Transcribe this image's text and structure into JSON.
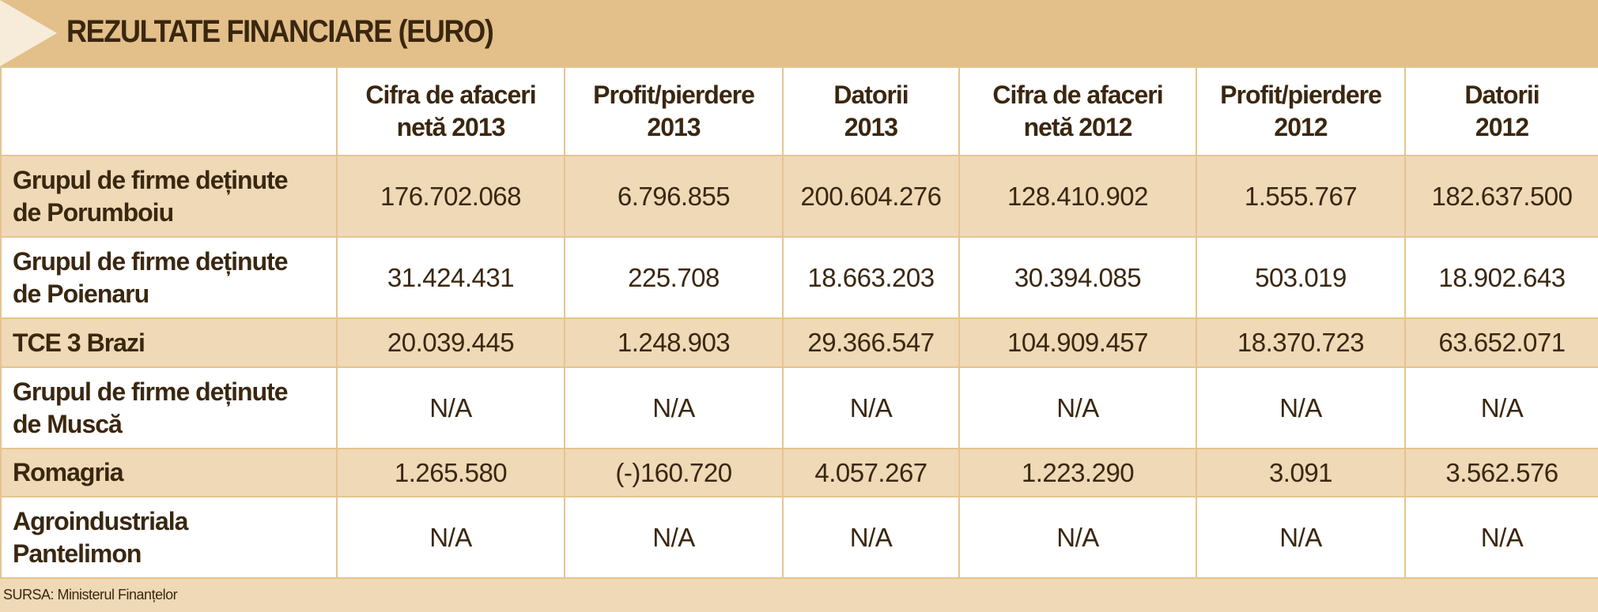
{
  "title": "REZULTATE FINANCIARE (EURO)",
  "table": {
    "header": [
      [
        "Cifra de afaceri",
        "netă 2013"
      ],
      [
        "Profit/pierdere",
        "2013"
      ],
      [
        "Datorii",
        "2013"
      ],
      [
        "Cifra de afaceri",
        "netă 2012"
      ],
      [
        "Profit/pierdere",
        "2012"
      ],
      [
        "Datorii",
        "2012"
      ]
    ],
    "rows": [
      {
        "label": [
          "Grupul de firme deținute",
          "de Porumboiu"
        ],
        "values": [
          "176.702.068",
          "6.796.855",
          "200.604.276",
          "128.410.902",
          "1.555.767",
          "182.637.500"
        ]
      },
      {
        "label": [
          "Grupul de firme deținute",
          "de Poienaru"
        ],
        "values": [
          "31.424.431",
          "225.708",
          "18.663.203",
          "30.394.085",
          "503.019",
          "18.902.643"
        ]
      },
      {
        "label": [
          "TCE 3 Brazi"
        ],
        "values": [
          "20.039.445",
          "1.248.903",
          "29.366.547",
          "104.909.457",
          "18.370.723",
          "63.652.071"
        ]
      },
      {
        "label": [
          "Grupul de firme deținute",
          "de Muscă"
        ],
        "values": [
          "N/A",
          "N/A",
          "N/A",
          "N/A",
          "N/A",
          "N/A"
        ]
      },
      {
        "label": [
          "Romagria"
        ],
        "values": [
          "1.265.580",
          "(-)160.720",
          "4.057.267",
          "1.223.290",
          "3.091",
          "3.562.576"
        ]
      },
      {
        "label": [
          "Agroindustriala",
          "Pantelimon"
        ],
        "values": [
          "N/A",
          "N/A",
          "N/A",
          "N/A",
          "N/A",
          "N/A"
        ]
      }
    ]
  },
  "source": "SURSA: Ministerul Finanțelor"
}
